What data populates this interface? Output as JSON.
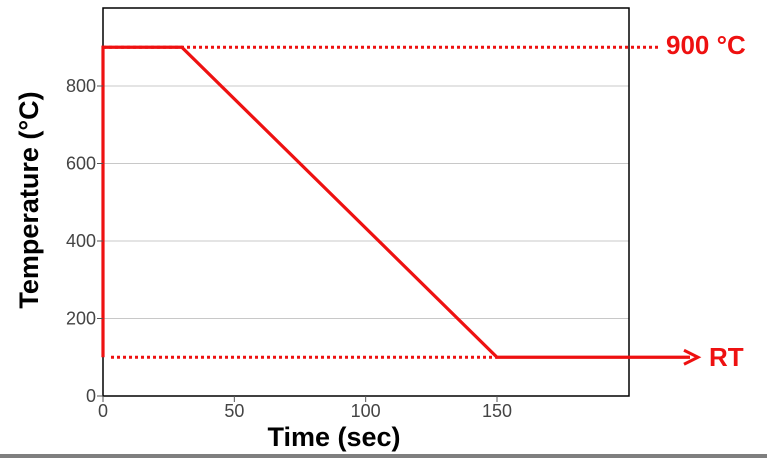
{
  "chart_data": {
    "type": "line",
    "xlabel": "Time (sec)",
    "ylabel": "Temperature (°C)",
    "xlim": [
      0,
      200
    ],
    "ylim": [
      0,
      1000
    ],
    "x_ticks": [
      "0",
      "50",
      "100",
      "150"
    ],
    "y_ticks": [
      "0",
      "200",
      "400",
      "600",
      "800"
    ],
    "x_tick_values": [
      0,
      50,
      100,
      150
    ],
    "y_tick_values": [
      0,
      200,
      400,
      600,
      800
    ],
    "grid": "horizontal",
    "series": [
      {
        "x": [
          0,
          0,
          30,
          150,
          200
        ],
        "y": [
          100,
          900,
          900,
          100,
          100
        ]
      }
    ],
    "reference_lines": [
      {
        "y": 900,
        "label": "900 °C"
      },
      {
        "y": 100,
        "label": "RT"
      }
    ]
  },
  "colors": {
    "series": "#ee1111",
    "grid": "#c8c8c8",
    "frame": "#000000"
  }
}
